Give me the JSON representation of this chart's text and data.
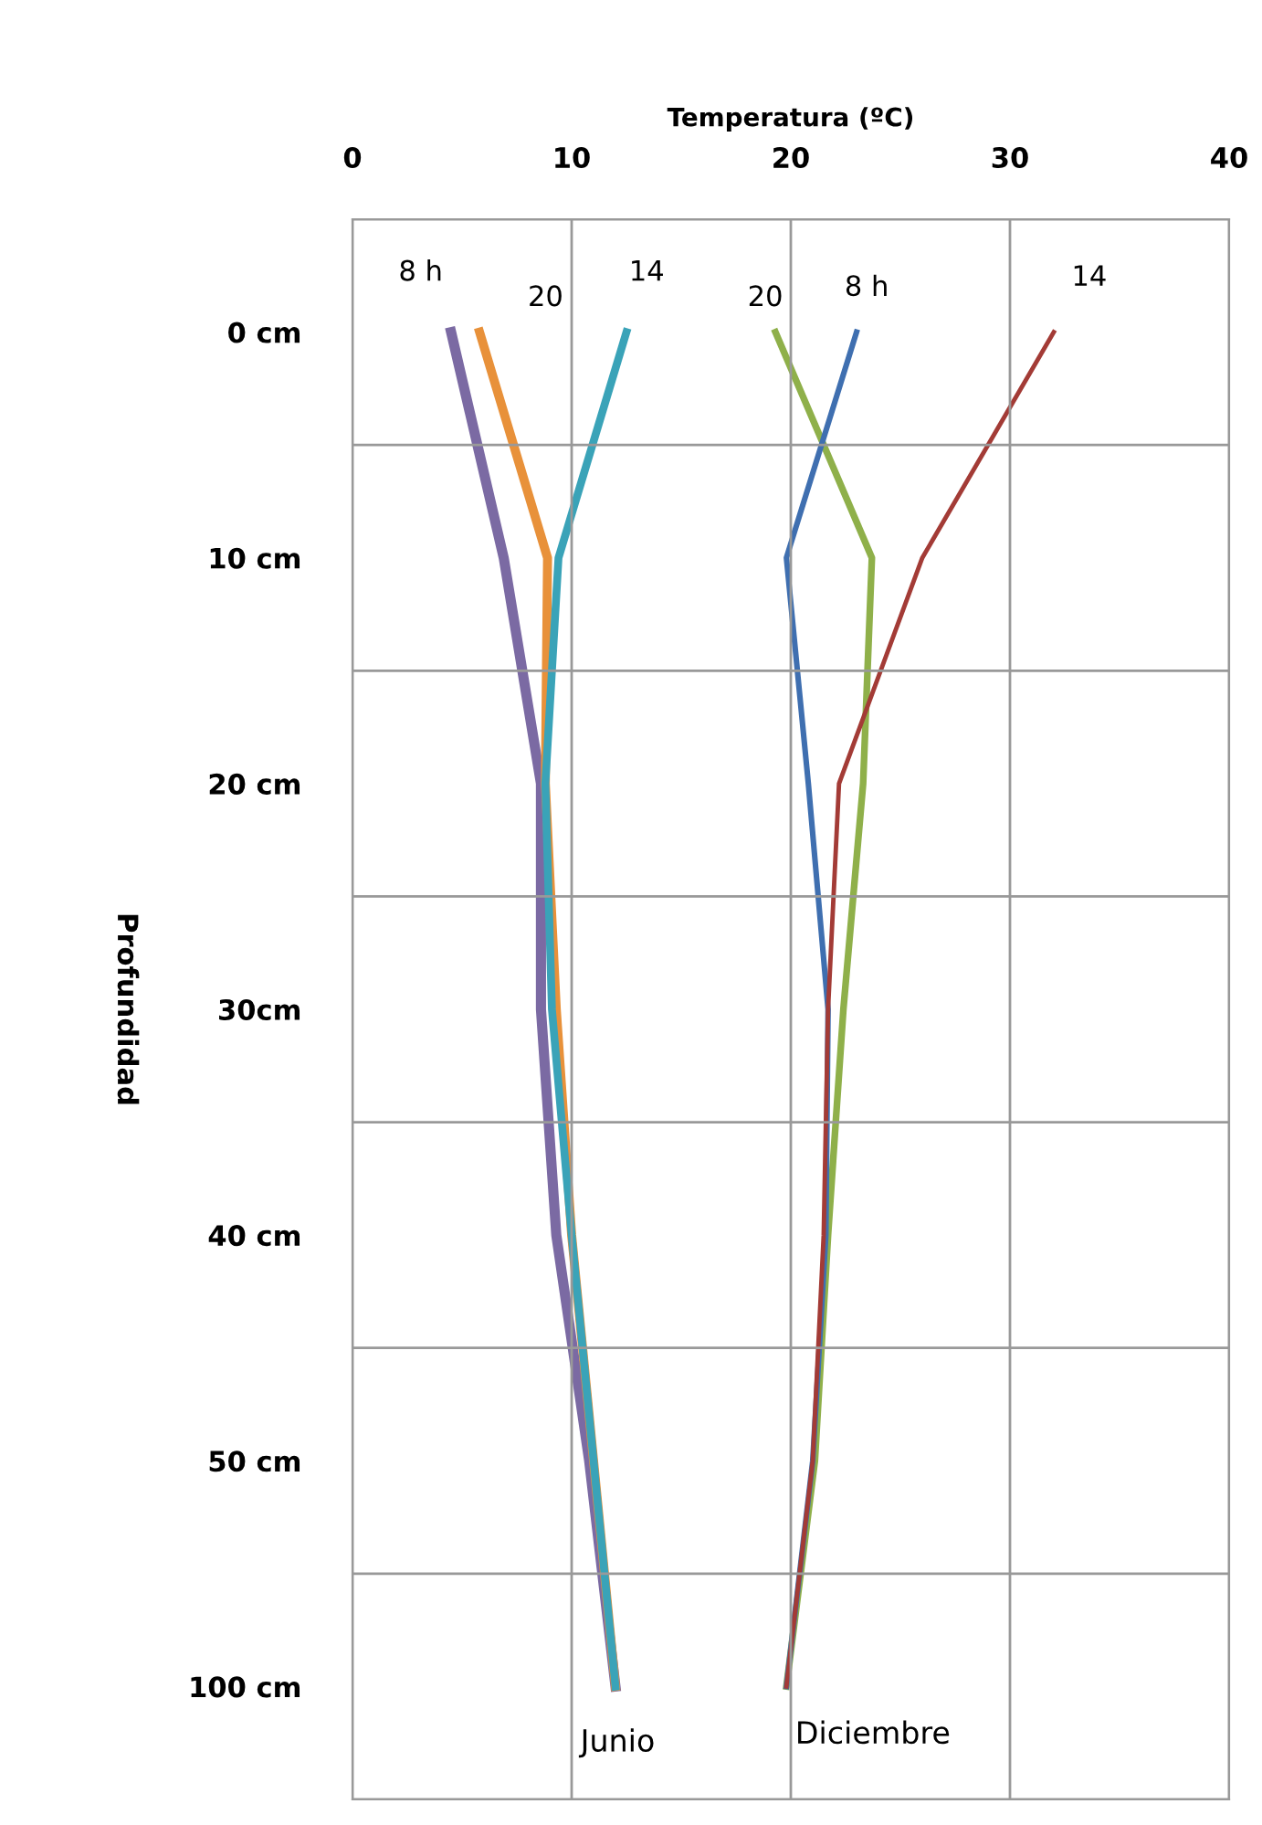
{
  "chart_data": {
    "type": "line",
    "orientation": "horizontal",
    "xlabel": "Temperatura (ºC)",
    "ylabel": "Profundidad",
    "categories": [
      "0 cm",
      "10 cm",
      "20 cm",
      "30cm",
      "40 cm",
      "50 cm",
      "100 cm"
    ],
    "xlim": [
      0,
      40
    ],
    "xticks": [
      0,
      10,
      20,
      30,
      40
    ],
    "grid": true,
    "legend": false,
    "series": [
      {
        "name": "8 h",
        "color": "#7b6aa3",
        "values": [
          4.5,
          6.9,
          8.6,
          8.6,
          9.3,
          10.8,
          12
        ]
      },
      {
        "name": "20",
        "color": "#e8913a",
        "values": [
          5.8,
          8.9,
          8.8,
          9.3,
          10,
          11,
          12
        ]
      },
      {
        "name": "14",
        "color": "#3aa3b8",
        "values": [
          12.5,
          9.4,
          8.8,
          9.1,
          10,
          11,
          12
        ]
      },
      {
        "name": "20",
        "color": "#8fb04a",
        "values": [
          19.3,
          23.7,
          23.3,
          22.4,
          21.7,
          21.1,
          19.8
        ]
      },
      {
        "name": "8 h",
        "color": "#3f6fb0",
        "values": [
          23,
          19.8,
          20.8,
          21.7,
          21.6,
          21,
          19.8
        ]
      },
      {
        "name": "14",
        "color": "#a33b36",
        "values": [
          32,
          26,
          22.2,
          21.7,
          21.5,
          21,
          19.8
        ]
      }
    ],
    "annotations": [
      "Junio",
      "Diciembre"
    ]
  }
}
